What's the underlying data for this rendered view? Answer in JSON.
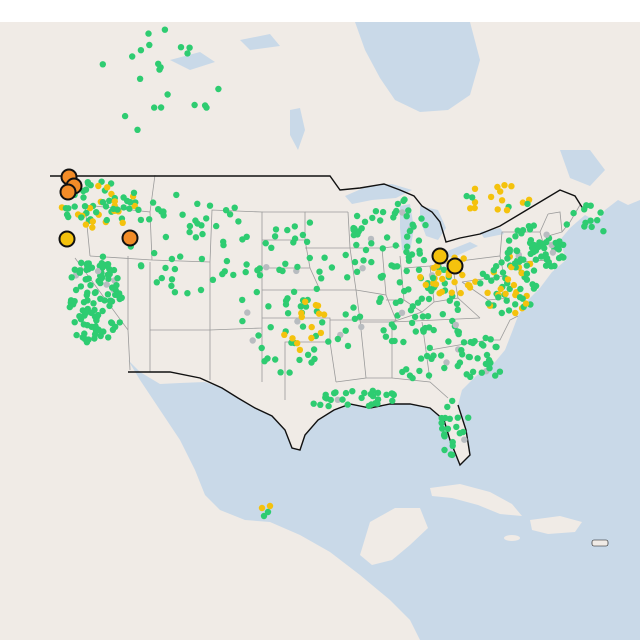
{
  "map": {
    "colors": {
      "water": "#c9d9e8",
      "land": "#f0ebe6",
      "land_shade": "#e9e2dc",
      "state_border": "#9a9a9a",
      "country_border": "#111111",
      "good": "#2ecc71",
      "moderate": "#f4c20d",
      "usg": "#f28c28",
      "nodata": "#b8bcc0",
      "marker_stroke": "#111111"
    },
    "levels": [
      "good",
      "moderate",
      "usg",
      "nodata"
    ]
  }
}
